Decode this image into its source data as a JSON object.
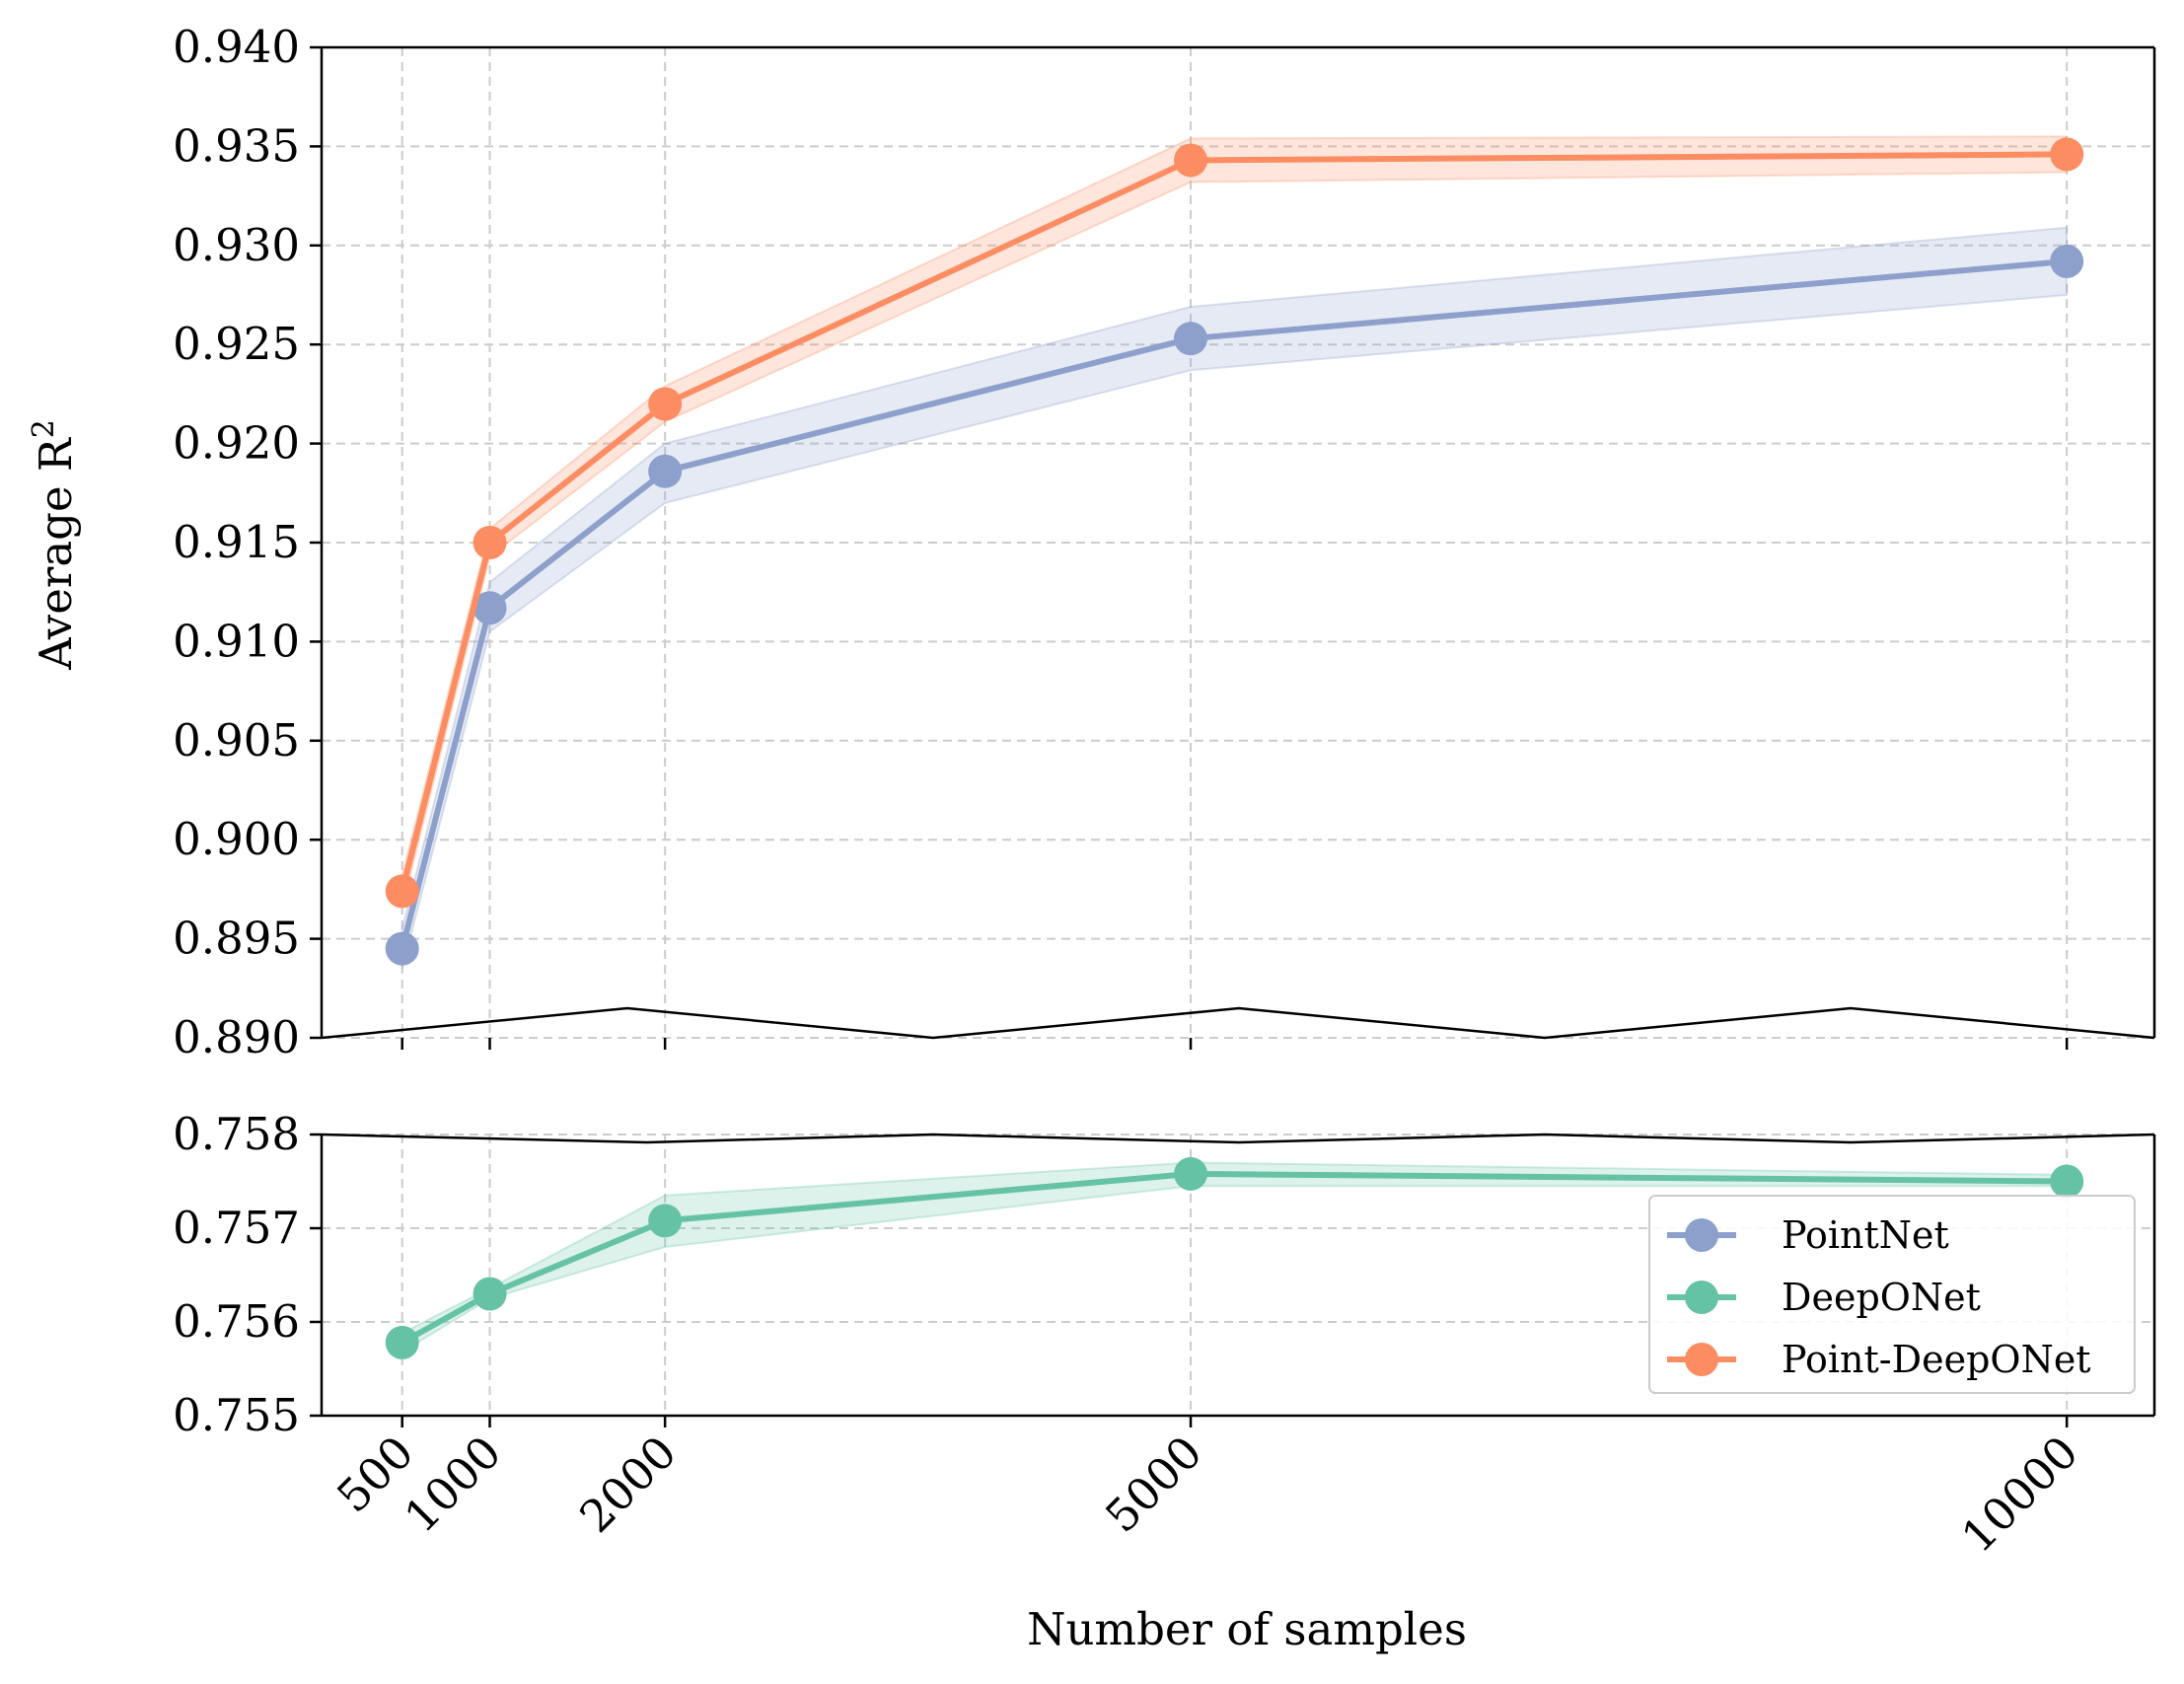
{
  "chart_data": {
    "type": "line",
    "broken_y_axis": true,
    "xlabel": "Number of samples",
    "ylabel": "Average R²",
    "x": [
      500,
      1000,
      2000,
      5000,
      10000
    ],
    "x_tick_labels": [
      "500",
      "1000",
      "2000",
      "5000",
      "10000"
    ],
    "x_tick_rotation_deg": 45,
    "xlim": [
      40,
      10500
    ],
    "panels": [
      {
        "name": "upper",
        "ylim": [
          0.89,
          0.94
        ],
        "y_ticks": [
          0.89,
          0.895,
          0.9,
          0.905,
          0.91,
          0.915,
          0.92,
          0.925,
          0.93,
          0.935,
          0.94
        ],
        "y_tick_labels": [
          "0.890",
          "0.895",
          "0.900",
          "0.905",
          "0.910",
          "0.915",
          "0.920",
          "0.925",
          "0.930",
          "0.935",
          "0.940"
        ]
      },
      {
        "name": "lower",
        "ylim": [
          0.755,
          0.758
        ],
        "y_ticks": [
          0.755,
          0.756,
          0.757,
          0.758
        ],
        "y_tick_labels": [
          "0.755",
          "0.756",
          "0.757",
          "0.758"
        ]
      }
    ],
    "series": [
      {
        "name": "PointNet",
        "panel": "upper",
        "color": "#8da0cb",
        "values": [
          0.8945,
          0.9117,
          0.9186,
          0.9253,
          0.9292
        ],
        "band_lower": [
          0.8935,
          0.9105,
          0.917,
          0.9237,
          0.9275
        ],
        "band_upper": [
          0.8955,
          0.913,
          0.92,
          0.9269,
          0.9309
        ]
      },
      {
        "name": "DeepONet",
        "panel": "lower",
        "color": "#66c2a5",
        "values": [
          0.75578,
          0.7563,
          0.75708,
          0.75758,
          0.7575
        ],
        "band_lower": [
          0.75568,
          0.75625,
          0.7568,
          0.75745,
          0.75745
        ],
        "band_upper": [
          0.75588,
          0.75636,
          0.75735,
          0.7577,
          0.75757
        ]
      },
      {
        "name": "Point-DeepONet",
        "panel": "upper",
        "color": "#fc8d62",
        "values": [
          0.8974,
          0.915,
          0.922,
          0.9343,
          0.9346
        ],
        "band_lower": [
          0.8966,
          0.9143,
          0.9211,
          0.9332,
          0.9337
        ],
        "band_upper": [
          0.8982,
          0.9157,
          0.9229,
          0.9354,
          0.9355
        ]
      }
    ],
    "legend": {
      "placement": "lower-right of lower panel",
      "entries": [
        "PointNet",
        "DeepONet",
        "Point-DeepONet"
      ]
    },
    "grid": true
  }
}
